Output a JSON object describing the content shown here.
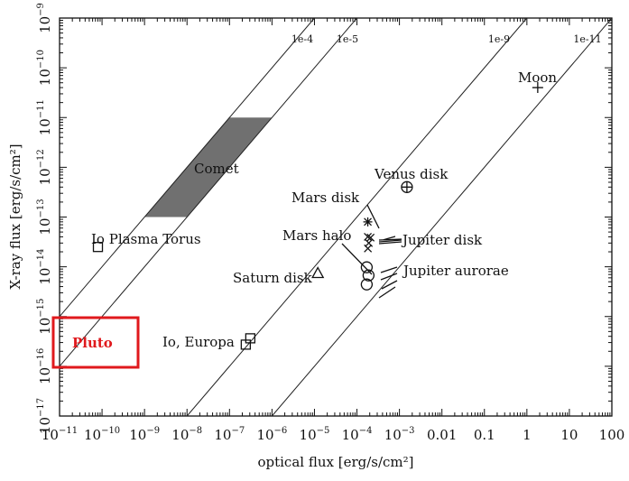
{
  "chart_data": {
    "type": "scatter",
    "title": "",
    "xlabel": "optical flux [erg/s/cm²]",
    "ylabel": "X-ray flux [erg/s/cm²]",
    "x_scale": "log",
    "y_scale": "log",
    "xlim": [
      1e-11,
      100
    ],
    "ylim": [
      1e-17,
      1e-09
    ],
    "x_ticks": [
      {
        "value": 1e-11,
        "base": "10",
        "exp": "−11"
      },
      {
        "value": 1e-10,
        "base": "10",
        "exp": "−10"
      },
      {
        "value": 1e-09,
        "base": "10",
        "exp": "−9"
      },
      {
        "value": 1e-08,
        "base": "10",
        "exp": "−8"
      },
      {
        "value": 1e-07,
        "base": "10",
        "exp": "−7"
      },
      {
        "value": 1e-06,
        "base": "10",
        "exp": "−6"
      },
      {
        "value": 1e-05,
        "base": "10",
        "exp": "−5"
      },
      {
        "value": 0.0001,
        "base": "10",
        "exp": "−4"
      },
      {
        "value": 0.001,
        "base": "10",
        "exp": "−3"
      },
      {
        "value": 0.01,
        "base": "0.01",
        "exp": ""
      },
      {
        "value": 0.1,
        "base": "0.1",
        "exp": ""
      },
      {
        "value": 1,
        "base": "1",
        "exp": ""
      },
      {
        "value": 10,
        "base": "10",
        "exp": ""
      },
      {
        "value": 100,
        "base": "100",
        "exp": ""
      }
    ],
    "y_ticks": [
      {
        "value": 1e-17,
        "base": "10",
        "exp": "−17"
      },
      {
        "value": 1e-16,
        "base": "10",
        "exp": "−16"
      },
      {
        "value": 1e-15,
        "base": "10",
        "exp": "−15"
      },
      {
        "value": 1e-14,
        "base": "10",
        "exp": "−14"
      },
      {
        "value": 1e-13,
        "base": "10",
        "exp": "−13"
      },
      {
        "value": 1e-12,
        "base": "10",
        "exp": "−12"
      },
      {
        "value": 1e-11,
        "base": "10",
        "exp": "−11"
      },
      {
        "value": 1e-10,
        "base": "10",
        "exp": "−10"
      },
      {
        "value": 1e-09,
        "base": "10",
        "exp": "−9"
      }
    ],
    "ratio_lines": [
      {
        "label": "1e-4",
        "ratio": 0.0001
      },
      {
        "label": "1e-5",
        "ratio": 1e-05
      },
      {
        "label": "1e-9",
        "ratio": 1e-09
      },
      {
        "label": "1e-11",
        "ratio": 1e-11
      }
    ],
    "comet_region": {
      "label": "Comet",
      "y_min": 1e-13,
      "y_max": 1e-11,
      "x_left_at_ymin": 1e-09,
      "x_left_at_ymax": 1e-07,
      "x_right_at_ymin": 1e-08,
      "x_right_at_ymax": 1e-06,
      "fill": "#707070"
    },
    "points": [
      {
        "name": "Moon",
        "label": "Moon",
        "marker": "plus",
        "x": 1.8,
        "y": 4e-11
      },
      {
        "name": "Venus disk",
        "label": "Venus disk",
        "marker": "circle-plus",
        "x": 0.0015,
        "y": 4e-13
      },
      {
        "name": "Io Plasma Torus",
        "label": "Io Plasma Torus",
        "marker": "square",
        "x": 8e-11,
        "y": 2.5e-14
      },
      {
        "name": "Io, Europa",
        "label": "Io, Europa",
        "marker": "square-pair",
        "x": 2.8e-07,
        "y": 3.5e-16
      },
      {
        "name": "Saturn disk",
        "label": "Saturn disk",
        "marker": "triangle",
        "x": 1.2e-05,
        "y": 7.5e-15
      },
      {
        "name": "Mars disk",
        "label": "Mars disk",
        "marker": "star",
        "x": 0.00018,
        "y": 8e-14
      },
      {
        "name": "Mars halo",
        "label": "Mars halo",
        "marker": "cross",
        "x": 0.00018,
        "y": 4e-14
      },
      {
        "name": "Jupiter disk",
        "label": "Jupiter disk",
        "marker": "cross-group",
        "x": 0.00019,
        "y": 3e-14
      },
      {
        "name": "Jupiter aurorae",
        "label": "Jupiter aurorae",
        "marker": "circle-group",
        "x": 0.00017,
        "y": 7e-15
      }
    ],
    "annotation": {
      "label": "Pluto",
      "color": "#e0191d"
    },
    "grid": false,
    "legend": "none"
  }
}
